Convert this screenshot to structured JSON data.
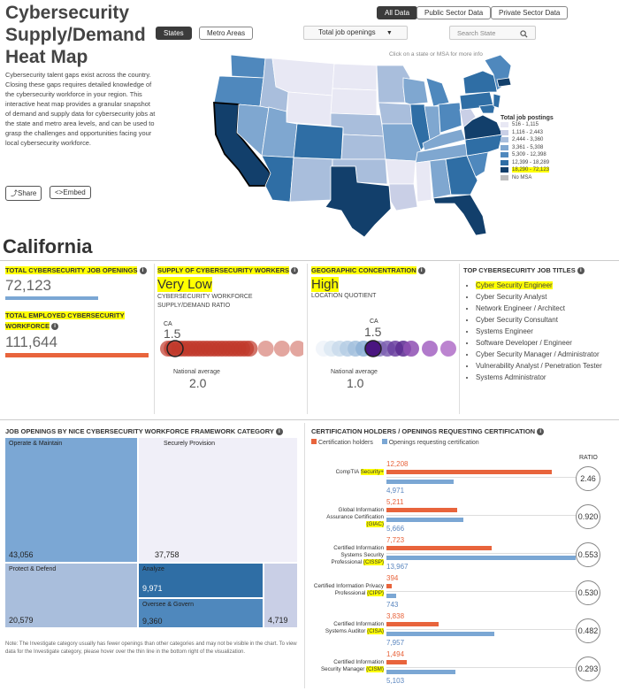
{
  "header": {
    "title_line1": "Cybersecurity",
    "title_line2": "Supply/Demand",
    "title_line3": "Heat Map",
    "view_states": "States",
    "view_metro": "Metro Areas",
    "data_all": "All Data",
    "data_public": "Public Sector Data",
    "data_private": "Private Sector Data",
    "metric_dropdown": "Total job openings",
    "search_placeholder": "Search State",
    "map_hint": "Click on a state or MSA for more info",
    "description": "Cybersecurity talent gaps exist across the country. Closing these gaps requires detailed knowledge of the cybersecurity workforce in your region. This interactive heat map provides a granular snapshot of demand and supply data for cybersecurity jobs at the state and metro area levels, and can be used to grasp the challenges and opportunities facing your local cybersecurity workforce.",
    "share_label": "Share",
    "embed_label": "Embed"
  },
  "legend": {
    "title": "Total job postings",
    "items": [
      {
        "label": "516 - 1,115",
        "color": "#e8e8f4"
      },
      {
        "label": "1,116 - 2,443",
        "color": "#c9cfe6"
      },
      {
        "label": "2,444 - 3,360",
        "color": "#a9bedc"
      },
      {
        "label": "3,361 - 5,308",
        "color": "#7fa7d0"
      },
      {
        "label": "5,309 - 12,398",
        "color": "#4f88bd"
      },
      {
        "label": "12,399 - 18,289",
        "color": "#2f6ea5"
      },
      {
        "label": "18,290 - 72,123",
        "color": "#123f6b"
      },
      {
        "label": "No MSA",
        "color": "#bdbdbd"
      }
    ]
  },
  "state": {
    "name": "California",
    "total_openings_label": "TOTAL CYBERSECURITY JOB OPENINGS",
    "total_openings_value": "72,123",
    "total_employed_label": "TOTAL EMPLOYED CYBERSECURITY WORKFORCE",
    "total_employed_value": "111,644",
    "supply_label": "SUPPLY OF CYBERSECURITY WORKERS",
    "supply_value": "Very Low",
    "supply_sub": "CYBERSECURITY WORKFORCE SUPPLY/DEMAND RATIO",
    "supply_ca_label": "CA",
    "supply_ca_value": "1.5",
    "supply_nat_label": "National average",
    "supply_nat_value": "2.0",
    "geo_label": "GEOGRAPHIC CONCENTRATION",
    "geo_value": "High",
    "geo_sub": "LOCATION QUOTIENT",
    "geo_ca_label": "CA",
    "geo_ca_value": "1.5",
    "geo_nat_label": "National average",
    "geo_nat_value": "1.0",
    "jobs_label": "TOP CYBERSECURITY JOB TITLES",
    "jobs": [
      "Cyber Security Engineer",
      "Cyber Security Analyst",
      "Network Engineer / Architect",
      "Cyber Security Consultant",
      "Systems Engineer",
      "Software Developer / Engineer",
      "Cyber Security Manager / Administrator",
      "Vulnerability Analyst / Penetration Tester",
      "Systems Administrator"
    ]
  },
  "nice": {
    "title": "JOB OPENINGS BY NICE CYBERSECURITY WORKFORCE FRAMEWORK CATEGORY",
    "cells": [
      {
        "label": "Operate & Maintain",
        "value": "43,056"
      },
      {
        "label": "Securely Provision",
        "value": "37,758"
      },
      {
        "label": "Protect & Defend",
        "value": "20,579"
      },
      {
        "label": "Analyze",
        "value": "9,971"
      },
      {
        "label": "Oversee & Govern",
        "value": "9,360"
      },
      {
        "label": "",
        "value": "4,719"
      }
    ],
    "note": "Note: The Investigate category usually has fewer openings than other categories and may not be visible in the chart. To view data for the Investigate category, please hover over the thin line in the bottom right of the visualization."
  },
  "cert": {
    "title": "CERTIFICATION HOLDERS / OPENINGS REQUESTING CERTIFICATION",
    "legend_holders": "Certification holders",
    "legend_openings": "Openings requesting certification",
    "ratio_header": "RATIO",
    "holders_color": "#e8643c",
    "openings_color": "#7ba7d4",
    "rows": [
      {
        "name": "CompTIA ",
        "abbr": "Security+",
        "holders": 12208,
        "holders_text": "12,208",
        "openings": 4971,
        "openings_text": "4,971",
        "ratio": "2.46"
      },
      {
        "name": "Global Information Assurance Certification ",
        "abbr": "(GIAC)",
        "holders": 5211,
        "holders_text": "5,211",
        "openings": 5666,
        "openings_text": "5,666",
        "ratio": "0.920"
      },
      {
        "name": "Certified Information Systems Security Professional ",
        "abbr": "(CISSP)",
        "holders": 7723,
        "holders_text": "7,723",
        "openings": 13967,
        "openings_text": "13,967",
        "ratio": "0.553"
      },
      {
        "name": "Certified Information Privacy Professional ",
        "abbr": "(CIPP)",
        "holders": 394,
        "holders_text": "394",
        "openings": 743,
        "openings_text": "743",
        "ratio": "0.530"
      },
      {
        "name": "Certified Information Systems Auditor ",
        "abbr": "(CISA)",
        "holders": 3838,
        "holders_text": "3,838",
        "openings": 7957,
        "openings_text": "7,957",
        "ratio": "0.482"
      },
      {
        "name": "Certified Information Security Manager ",
        "abbr": "(CISM)",
        "holders": 1494,
        "holders_text": "1,494",
        "openings": 5103,
        "openings_text": "5,103",
        "ratio": "0.293"
      }
    ]
  }
}
